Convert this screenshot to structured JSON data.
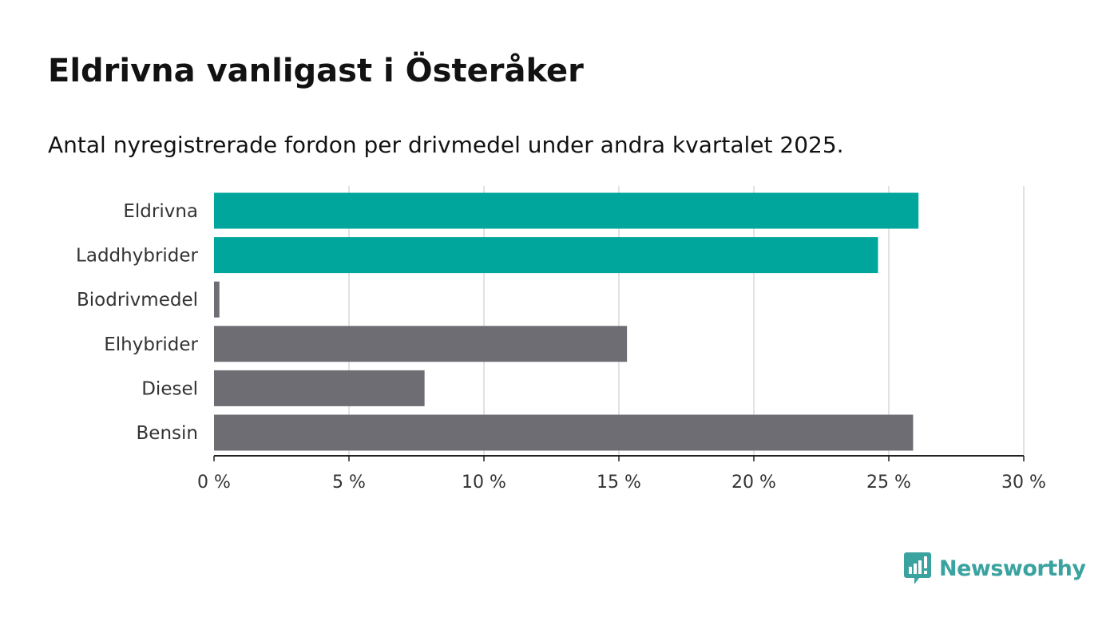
{
  "header": {
    "title": "Eldrivna vanligast i Österåker",
    "subtitle": "Antal nyregistrerade fordon per drivmedel under andra kvartalet 2025."
  },
  "brand": {
    "name": "Newsworthy",
    "color": "#3aa3a0",
    "icon": "newsworthy-logo-icon"
  },
  "colors": {
    "highlight": "#00a59c",
    "default": "#6e6d74",
    "grid": "#d9d9d9",
    "axis": "#222222"
  },
  "chart_data": {
    "type": "bar",
    "orientation": "horizontal",
    "categories": [
      "Eldrivna",
      "Laddhybrider",
      "Biodrivmedel",
      "Elhybrider",
      "Diesel",
      "Bensin"
    ],
    "values": [
      26.1,
      24.6,
      0.2,
      15.3,
      7.8,
      25.9
    ],
    "highlighted": [
      true,
      true,
      false,
      false,
      false,
      false
    ],
    "xlim": [
      0,
      30
    ],
    "xticks": [
      0,
      5,
      10,
      15,
      20,
      25,
      30
    ],
    "xtick_suffix": " %",
    "grid": true
  }
}
